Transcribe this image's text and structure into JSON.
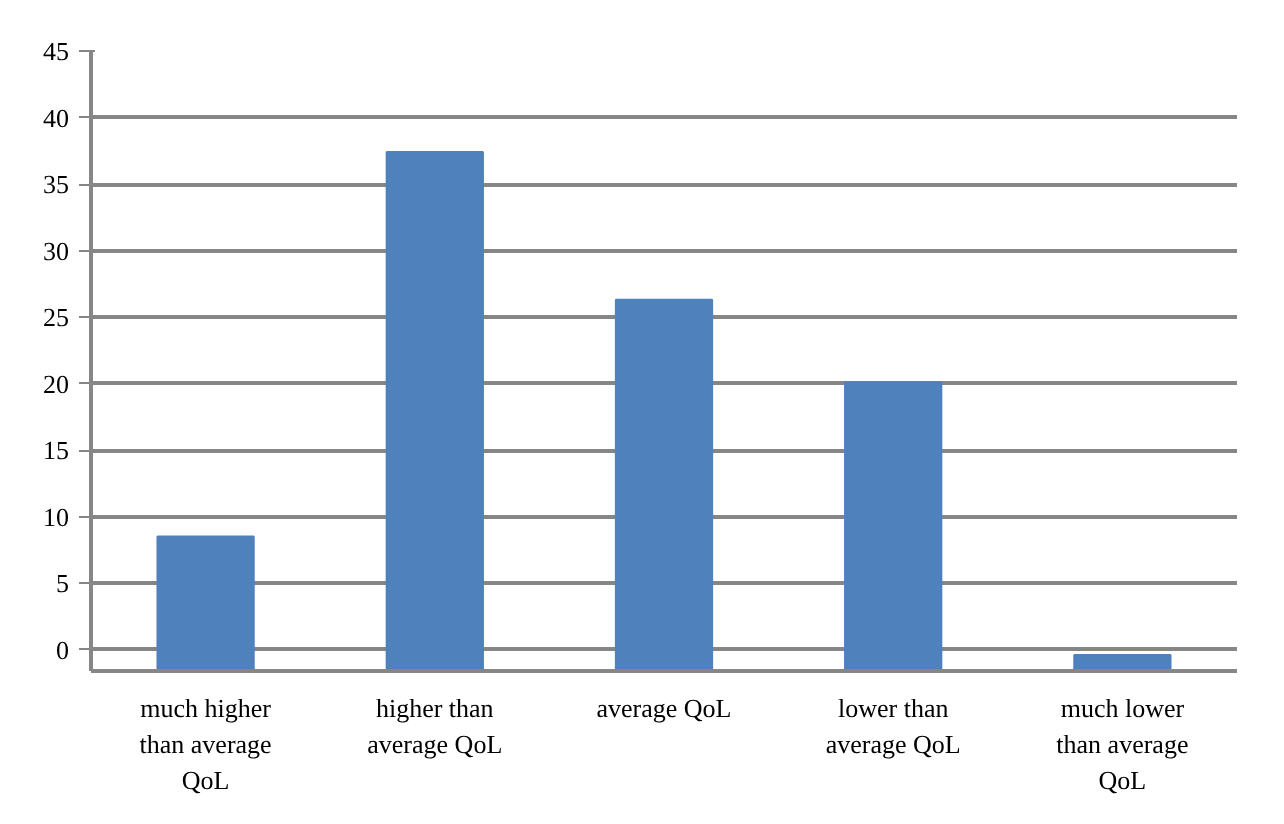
{
  "chart_data": {
    "type": "bar",
    "categories": [
      "much higher than average QoL",
      "higher than average QoL",
      "average QoL",
      "lower than average QoL",
      "much lower than average QoL"
    ],
    "values": [
      10.0,
      38.9,
      27.8,
      21.6,
      1.1
    ],
    "base": [
      -1.5,
      -1.5,
      -1.5,
      -1.5,
      -1.5
    ],
    "color": "#4f81bd",
    "ylim": [
      -1.6,
      45
    ],
    "yticks": [
      0,
      5,
      10,
      15,
      20,
      25,
      30,
      35,
      40,
      45
    ],
    "grid": "y"
  }
}
